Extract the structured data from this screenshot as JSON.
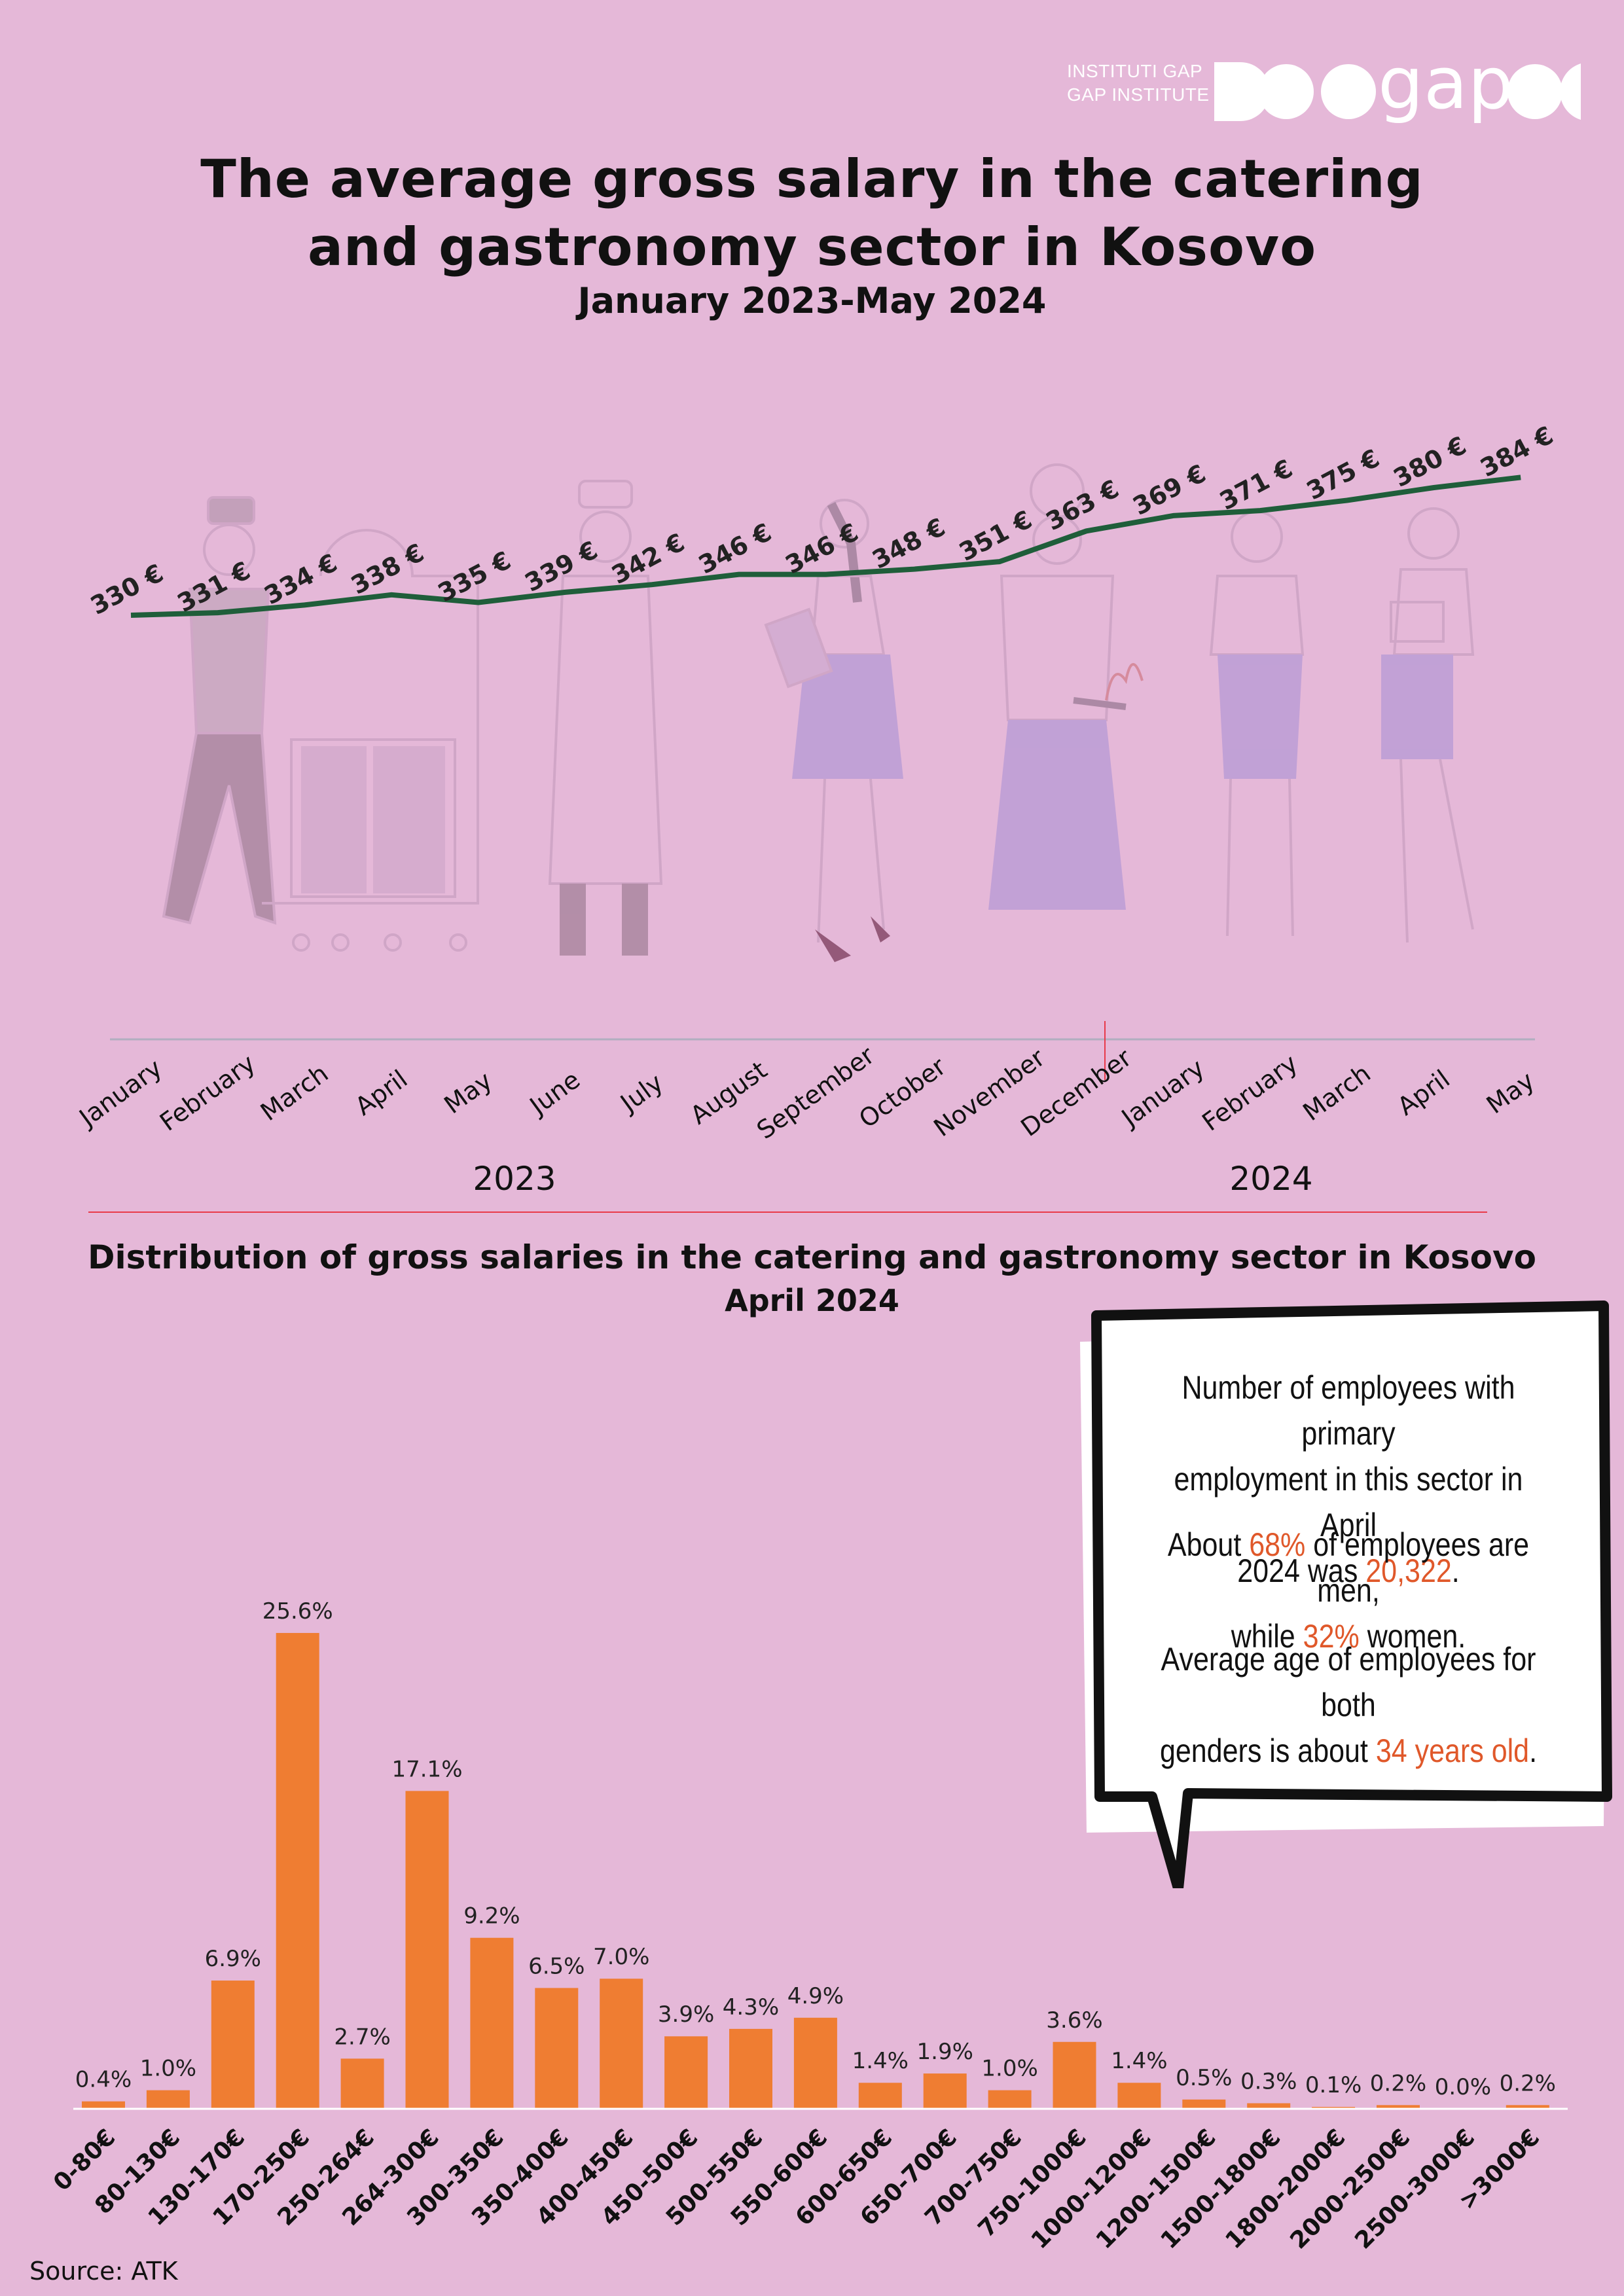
{
  "logo": {
    "line1": "INSTITUTI GAP",
    "line2": "GAP INSTITUTE",
    "wordmark": "gap"
  },
  "title": {
    "line1": "The average gross salary in the catering",
    "line2": "and gastronomy sector in Kosovo",
    "subtitle": "January 2023-May 2024"
  },
  "colors": {
    "background": "#e5b8d8",
    "line": "#1f5e3a",
    "bar": "#ef7d32",
    "highlight": "#e0582a",
    "divider": "#e83a4a"
  },
  "chart_data": [
    {
      "type": "line",
      "title": "The average gross salary in the catering and gastronomy sector in Kosovo",
      "x": [
        "January",
        "February",
        "March",
        "April",
        "May",
        "June",
        "July",
        "August",
        "September",
        "October",
        "November",
        "December",
        "January",
        "February",
        "March",
        "April",
        "May"
      ],
      "year_groups": [
        {
          "label": "2023",
          "count": 12
        },
        {
          "label": "2024",
          "count": 5
        }
      ],
      "series": [
        {
          "values": [
            330,
            331,
            334,
            338,
            335,
            339,
            342,
            346,
            346,
            348,
            351,
            363,
            369,
            371,
            375,
            380,
            384
          ],
          "labels": [
            "330 €",
            "331 €",
            "334 €",
            "338 €",
            "335 €",
            "339 €",
            "342 €",
            "346 €",
            "346 €",
            "348 €",
            "351 €",
            "363 €",
            "369 €",
            "371 €",
            "375 €",
            "380 €",
            "384 €"
          ]
        }
      ],
      "grid": false
    },
    {
      "type": "bar",
      "title": "Distribution of gross salaries in the catering and gastronomy sector in Kosovo",
      "subtitle": "April 2024",
      "categories": [
        "0-80€",
        "80-130€",
        "130-170€",
        "170-250€",
        "250-264€",
        "264-300€",
        "300-350€",
        "350-400€",
        "400-450€",
        "450-500€",
        "500-550€",
        "550-600€",
        "600-650€",
        "650-700€",
        "700-750€",
        "750-1000€",
        "1000-1200€",
        "1200-1500€",
        "1500-1800€",
        "1800-2000€",
        "2000-2500€",
        "2500-3000€",
        ">3000€"
      ],
      "values": [
        0.4,
        1.0,
        6.9,
        25.6,
        2.7,
        17.1,
        9.2,
        6.5,
        7.0,
        3.9,
        4.3,
        4.9,
        1.4,
        1.9,
        1.0,
        3.6,
        1.4,
        0.5,
        0.3,
        0.1,
        0.2,
        0.0,
        0.2
      ],
      "labels": [
        "0.4%",
        "1.0%",
        "6.9%",
        "25.6%",
        "2.7%",
        "17.1%",
        "9.2%",
        "6.5%",
        "7.0%",
        "3.9%",
        "4.3%",
        "4.9%",
        "1.4%",
        "1.9%",
        "1.0%",
        "3.6%",
        "1.4%",
        "0.5%",
        "0.3%",
        "0.1%",
        "0.2%",
        "0.0%",
        "0.2%"
      ],
      "grid": false
    }
  ],
  "callout": {
    "p1_a": "Number of employees with primary",
    "p1_b": "employment in this sector in April",
    "p1_c": "2024 was ",
    "p1_value": "20,322",
    "p1_end": ".",
    "p2_a": "About ",
    "p2_value": "68%",
    "p2_b": " of employees are men,",
    "p2_c": "while ",
    "p2_value2": "32%",
    "p2_d": " women.",
    "p3_a": "Average age of employees for both",
    "p3_b": "genders is about ",
    "p3_value": "34 years old",
    "p3_end": "."
  },
  "source": "Source: ATK"
}
